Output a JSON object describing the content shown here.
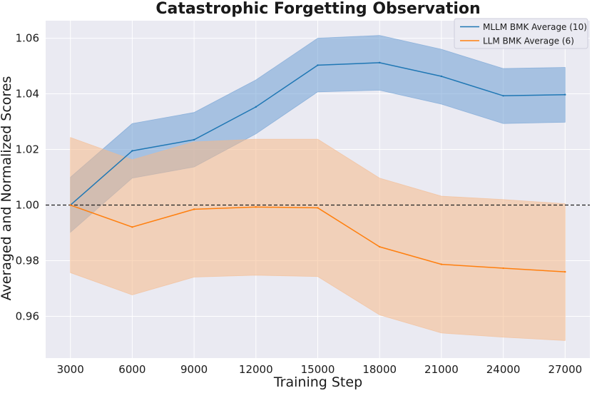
{
  "chart_data": {
    "type": "line",
    "title": "Catastrophic Forgetting Observation",
    "xlabel": "Training Step",
    "ylabel": "Averaged and Normalized Scores",
    "x": [
      3000,
      6000,
      9000,
      12000,
      15000,
      18000,
      21000,
      24000,
      27000
    ],
    "x_tick_labels": [
      "3000",
      "6000",
      "9000",
      "12000",
      "15000",
      "18000",
      "21000",
      "24000",
      "27000"
    ],
    "y_ticks": [
      0.96,
      0.98,
      1.0,
      1.02,
      1.04,
      1.06
    ],
    "y_tick_labels": [
      "0.96",
      "0.98",
      "1.00",
      "1.02",
      "1.04",
      "1.06"
    ],
    "xlim": [
      1800,
      28200
    ],
    "ylim": [
      0.945,
      1.0663
    ],
    "grid": true,
    "background": "#eaeaf2",
    "legend_position": "top-right",
    "reference_line": {
      "y": 1.0,
      "style": "dashed",
      "color": "#222222"
    },
    "series": [
      {
        "name": "MLLM BMK Average (10)",
        "color": "#1f77b4",
        "fill_color": "#6d9fd4",
        "values": [
          1.0,
          1.0195,
          1.0235,
          1.0353,
          1.0503,
          1.0512,
          1.0463,
          1.0393,
          1.0397
        ],
        "upper": [
          1.01,
          1.0293,
          1.0333,
          1.045,
          1.06,
          1.061,
          1.056,
          1.0491,
          1.0495
        ],
        "lower": [
          0.9902,
          1.0097,
          1.0137,
          1.0256,
          1.0407,
          1.0413,
          1.0363,
          1.0293,
          1.0298
        ]
      },
      {
        "name": "LLM BMK Average (6)",
        "color": "#ff7f0e",
        "fill_color": "#f5b98a",
        "values": [
          1.0,
          0.9921,
          0.9985,
          0.9993,
          0.999,
          0.985,
          0.9787,
          0.9773,
          0.976
        ],
        "upper": [
          1.0243,
          1.0163,
          1.0227,
          1.0237,
          1.0237,
          1.0097,
          1.0032,
          1.002,
          1.0005
        ],
        "lower": [
          0.9757,
          0.9677,
          0.9741,
          0.9748,
          0.9743,
          0.9605,
          0.954,
          0.9525,
          0.9513
        ]
      }
    ]
  }
}
